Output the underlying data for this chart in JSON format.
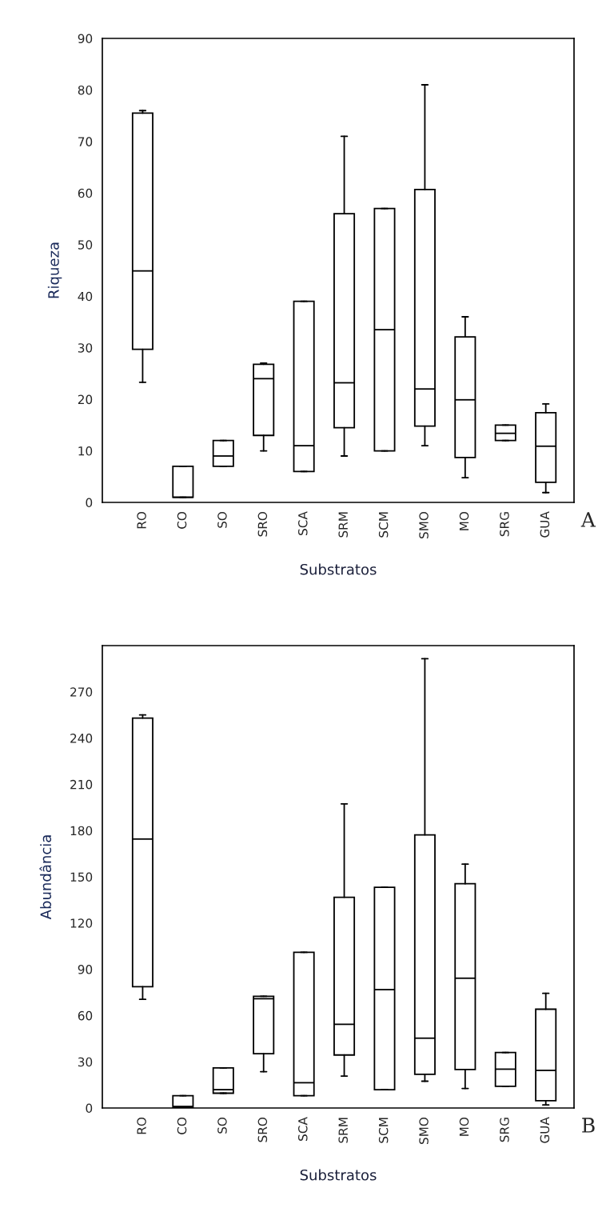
{
  "chart_data": [
    {
      "type": "box",
      "xlabel": "Substratos",
      "ylabel": "Riqueza",
      "annotations": [
        "A"
      ],
      "ylim": [
        0,
        90
      ],
      "yticks": [
        0,
        10,
        20,
        30,
        40,
        50,
        60,
        70,
        80,
        90
      ],
      "grid": false,
      "color": "#000000",
      "categories": [
        "RO",
        "CO",
        "SO",
        "SRO",
        "SCA",
        "SRM",
        "SCM",
        "SMO",
        "MO",
        "SRG",
        "GUA"
      ],
      "boxes": [
        {
          "low": 23.3,
          "q1": 29.7,
          "median": 44.9,
          "q3": 75.5,
          "high": 76
        },
        {
          "low": 1,
          "q1": 1,
          "median": 1,
          "q3": 7,
          "high": 7
        },
        {
          "low": 7,
          "q1": 7,
          "median": 9,
          "q3": 12,
          "high": 12
        },
        {
          "low": 10,
          "q1": 13,
          "median": 24,
          "q3": 26.8,
          "high": 27
        },
        {
          "low": 6,
          "q1": 6,
          "median": 11,
          "q3": 39,
          "high": 39
        },
        {
          "low": 9,
          "q1": 14.5,
          "median": 23.2,
          "q3": 56,
          "high": 71
        },
        {
          "low": 10,
          "q1": 10,
          "median": 33.5,
          "q3": 57,
          "high": 57
        },
        {
          "low": 11,
          "q1": 14.8,
          "median": 22,
          "q3": 60.7,
          "high": 81
        },
        {
          "low": 4.8,
          "q1": 8.7,
          "median": 19.9,
          "q3": 32.1,
          "high": 36
        },
        {
          "low": 12,
          "q1": 12,
          "median": 13.4,
          "q3": 15,
          "high": 15
        },
        {
          "low": 1.9,
          "q1": 3.9,
          "median": 10.9,
          "q3": 17.4,
          "high": 19.1
        }
      ]
    },
    {
      "type": "box",
      "xlabel": "Substratos",
      "ylabel": "Abundância",
      "annotations": [
        "B"
      ],
      "ylim": [
        0,
        300
      ],
      "yticks": [
        0,
        30,
        60,
        90,
        120,
        150,
        180,
        210,
        240,
        270
      ],
      "grid": false,
      "color": "#000000",
      "categories": [
        "RO",
        "CO",
        "SO",
        "SRO",
        "SCA",
        "SRM",
        "SCM",
        "SMO",
        "MO",
        "SRG",
        "GUA"
      ],
      "boxes": [
        {
          "low": 70.5,
          "q1": 78.7,
          "median": 174.5,
          "q3": 253,
          "high": 255
        },
        {
          "low": 0,
          "q1": 0,
          "median": 1,
          "q3": 8,
          "high": 8
        },
        {
          "low": 9.6,
          "q1": 9.6,
          "median": 11.9,
          "q3": 26,
          "high": 26
        },
        {
          "low": 23.6,
          "q1": 35.2,
          "median": 70.9,
          "q3": 72.5,
          "high": 72.5
        },
        {
          "low": 8,
          "q1": 8,
          "median": 16.4,
          "q3": 101,
          "high": 101
        },
        {
          "low": 20.7,
          "q1": 34.4,
          "median": 54.3,
          "q3": 136.7,
          "high": 197.3
        },
        {
          "low": 11.9,
          "q1": 11.9,
          "median": 76.8,
          "q3": 143.2,
          "high": 143.2
        },
        {
          "low": 17.4,
          "q1": 21.9,
          "median": 45.3,
          "q3": 177.2,
          "high": 291.5
        },
        {
          "low": 12.7,
          "q1": 25,
          "median": 84.2,
          "q3": 145.5,
          "high": 158.2
        },
        {
          "low": 14.1,
          "q1": 14.1,
          "median": 25.2,
          "q3": 36,
          "high": 36
        },
        {
          "low": 2,
          "q1": 4.7,
          "median": 24.4,
          "q3": 64.1,
          "high": 74.4
        }
      ]
    }
  ]
}
